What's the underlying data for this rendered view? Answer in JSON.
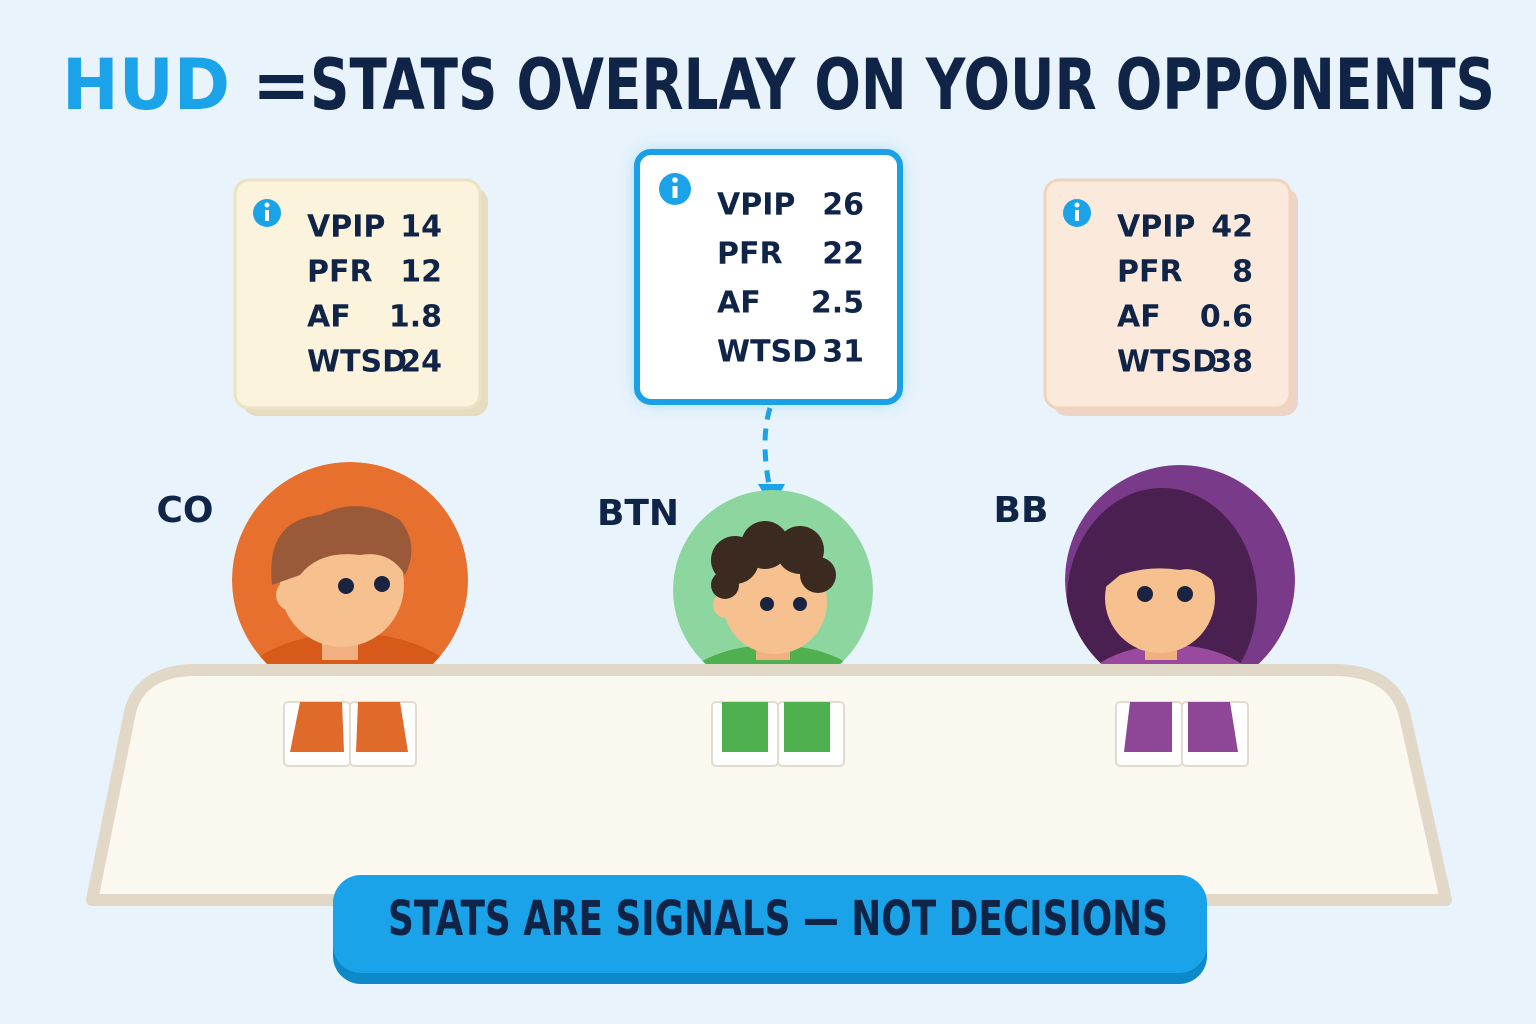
{
  "title": {
    "highlight": "HUD",
    "equals": "=",
    "rest": "STATS OVERLAY ON YOUR OPPONENTS"
  },
  "players": [
    {
      "position": "CO",
      "stats": [
        {
          "label": "VPIP",
          "value": 14
        },
        {
          "label": "PFR",
          "value": 12
        },
        {
          "label": "AF",
          "value": 1.8
        },
        {
          "label": "WTSD",
          "value": 24
        }
      ]
    },
    {
      "position": "BTN",
      "stats": [
        {
          "label": "VPIP",
          "value": 26
        },
        {
          "label": "PFR",
          "value": 22
        },
        {
          "label": "AF",
          "value": 2.5
        },
        {
          "label": "WTSD",
          "value": 31
        }
      ]
    },
    {
      "position": "BB",
      "stats": [
        {
          "label": "VPIP",
          "value": 42
        },
        {
          "label": "PFR",
          "value": 8
        },
        {
          "label": "AF",
          "value": 0.6
        },
        {
          "label": "WTSD",
          "value": 38
        }
      ]
    }
  ],
  "banner": "STATS ARE SIGNALS — NOT DECISIONS"
}
